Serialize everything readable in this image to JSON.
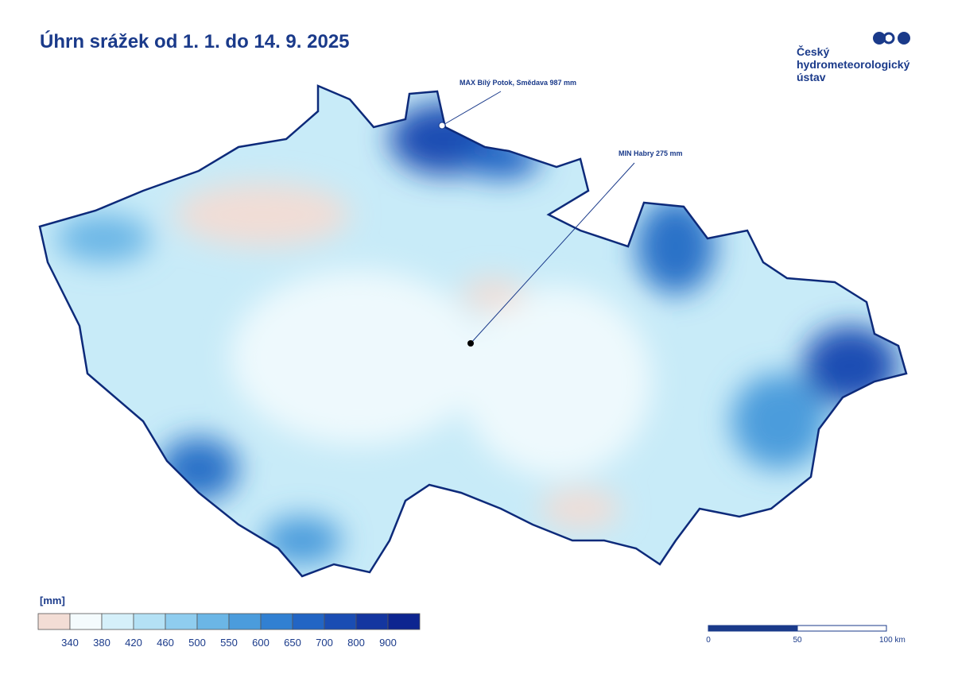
{
  "header": {
    "title": "Úhrn srážek od 1. 1. do 14. 9. 2025"
  },
  "logo": {
    "lines": [
      "Český",
      "hydrometeorologický",
      "ústav"
    ]
  },
  "annotations": [
    {
      "label": "MAX Bílý Potok, Smědava 987 mm"
    },
    {
      "label": "MIN Habry 275 mm"
    }
  ],
  "legend": {
    "unit": "[mm]",
    "colors": [
      "#f3ddd5",
      "#f4fbfd",
      "#d5f0fa",
      "#b4e1f5",
      "#8fcdef",
      "#6bb6e6",
      "#4b9cdc",
      "#3180d2",
      "#2265c4",
      "#1a4db3",
      "#1436a0",
      "#0d2590"
    ],
    "labels": [
      340,
      380,
      420,
      460,
      500,
      550,
      600,
      650,
      700,
      800,
      900
    ]
  },
  "scale_bar": {
    "labels": [
      "0",
      "50",
      "100 km"
    ]
  }
}
